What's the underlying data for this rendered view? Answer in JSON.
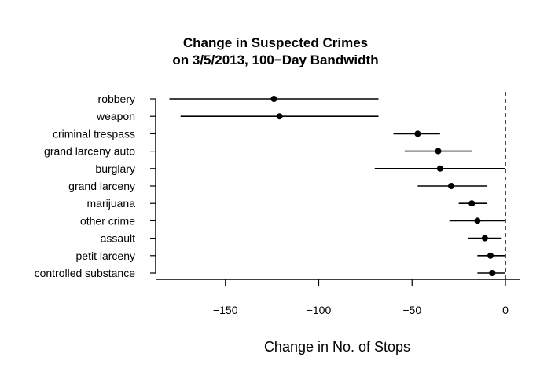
{
  "chart_data": {
    "type": "forest",
    "title": [
      "Change in Suspected Crimes",
      "on 3/5/2013, 100−Day Bandwidth"
    ],
    "xlabel": "Change in No. of Stops",
    "xlim": [
      -185,
      8
    ],
    "xticks": [
      -150,
      -100,
      -50,
      0
    ],
    "xtick_labels": [
      "−150",
      "−100",
      "−50",
      "0"
    ],
    "reference_line": 0,
    "categories": [
      "robbery",
      "weapon",
      "criminal trespass",
      "grand larceny auto",
      "burglary",
      "grand larceny",
      "marijuana",
      "other crime",
      "assault",
      "petit larceny",
      "controlled substance"
    ],
    "estimates": [
      -124,
      -121,
      -47,
      -36,
      -35,
      -29,
      -18,
      -15,
      -11,
      -8,
      -7
    ],
    "lower": [
      -180,
      -174,
      -60,
      -54,
      -70,
      -47,
      -25,
      -30,
      -20,
      -15,
      -15
    ],
    "upper": [
      -68,
      -68,
      -35,
      -18,
      0,
      -10,
      -10,
      0,
      -2,
      0,
      0
    ]
  }
}
